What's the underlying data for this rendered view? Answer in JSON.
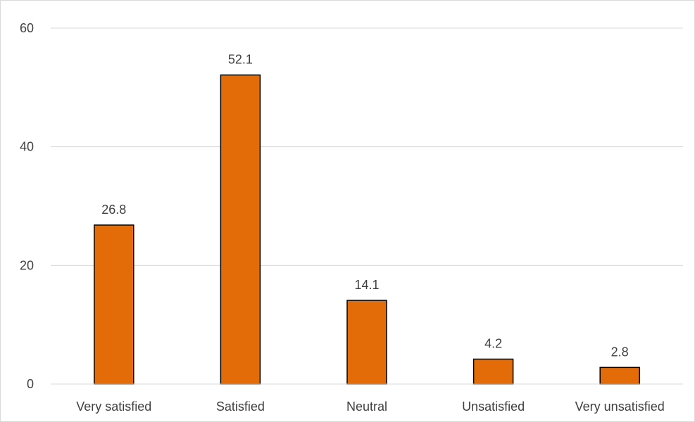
{
  "chart_data": {
    "type": "bar",
    "categories": [
      "Very satisfied",
      "Satisfied",
      "Neutral",
      "Unsatisfied",
      "Very unsatisfied"
    ],
    "values": [
      26.8,
      52.1,
      14.1,
      4.2,
      2.8
    ],
    "value_labels": [
      "26.8",
      "52.1",
      "14.1",
      "4.2",
      "2.8"
    ],
    "title": "",
    "xlabel": "",
    "ylabel": "",
    "ylim": [
      0,
      60
    ],
    "yticks": [
      0,
      20,
      40,
      60
    ],
    "ytick_labels": [
      "0",
      "20",
      "40",
      "60"
    ],
    "grid": true,
    "legend": "none",
    "colors": {
      "bar_fill": "#E36C09",
      "bar_stroke": "#000000",
      "grid": "#d9d9d9",
      "text": "#404040"
    }
  }
}
